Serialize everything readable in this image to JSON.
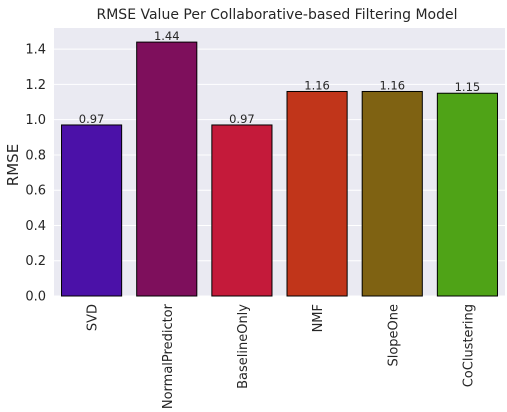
{
  "chart_data": {
    "type": "bar",
    "title": "RMSE Value Per Collaborative-based Filtering Model",
    "xlabel": "",
    "ylabel": "RMSE",
    "ylim": [
      0,
      1.52
    ],
    "yticks": [
      0.0,
      0.2,
      0.4,
      0.6,
      0.8,
      1.0,
      1.2,
      1.4
    ],
    "ytick_labels": [
      "0.0",
      "0.2",
      "0.4",
      "0.6",
      "0.8",
      "1.0",
      "1.2",
      "1.4"
    ],
    "grid": true,
    "categories": [
      "SVD",
      "NormalPredictor",
      "BaselineOnly",
      "NMF",
      "SlopeOne",
      "CoClustering"
    ],
    "values": [
      0.97,
      1.44,
      0.97,
      1.16,
      1.16,
      1.15
    ],
    "data_labels": [
      "0.97",
      "1.44",
      "0.97",
      "1.16",
      "1.16",
      "1.15"
    ],
    "colors": [
      "#4b11a8",
      "#7e0f5c",
      "#c41a3a",
      "#c1351a",
      "#7f6212",
      "#4fa317"
    ],
    "background": "#eaeaf2",
    "edge_color": "#000000"
  }
}
